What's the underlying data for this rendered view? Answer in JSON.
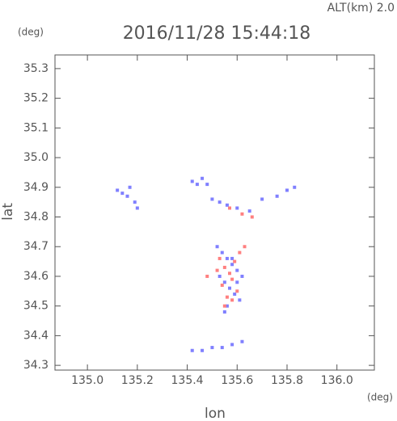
{
  "chart_data": {
    "type": "scatter",
    "altitude_label": "ALT(km) 2.0",
    "title": "2016/11/28 15:44:18",
    "ylabel_unit": "(deg)",
    "xlabel_unit": "(deg)",
    "ylabel": "lat",
    "xlabel": "lon",
    "xlim": [
      134.87,
      136.15
    ],
    "ylim": [
      34.284,
      35.346
    ],
    "xticks": [
      {
        "value": 135,
        "label": "135.0"
      },
      135.2,
      135.4,
      135.6,
      135.8,
      {
        "value": 136,
        "label": "136.0"
      }
    ],
    "yticks": [
      35.3,
      35.2,
      35.1,
      {
        "value": 35,
        "label": "35.0"
      },
      34.9,
      34.8,
      34.7,
      34.6,
      34.5,
      34.4,
      34.3
    ],
    "series": [
      {
        "color": "#8080ff",
        "x": [
          135.12,
          135.14,
          135.16,
          135.17,
          135.19,
          135.2,
          135.42,
          135.44,
          135.46,
          135.48,
          135.5,
          135.53,
          135.56,
          135.6,
          135.65,
          135.7,
          135.76,
          135.8,
          135.83,
          135.52,
          135.54,
          135.56,
          135.58,
          135.6,
          135.62,
          135.55,
          135.57,
          135.59,
          135.61,
          135.53,
          135.56,
          135.6,
          135.55,
          135.58,
          135.42,
          135.46,
          135.5,
          135.54,
          135.58,
          135.62
        ],
        "values": [
          34.89,
          34.88,
          34.87,
          34.9,
          34.85,
          34.83,
          34.92,
          34.91,
          34.93,
          34.91,
          34.86,
          34.85,
          34.84,
          34.83,
          34.82,
          34.86,
          34.87,
          34.89,
          34.9,
          34.7,
          34.68,
          34.66,
          34.64,
          34.62,
          34.6,
          34.58,
          34.56,
          34.54,
          34.52,
          34.6,
          34.5,
          34.58,
          34.48,
          34.66,
          34.35,
          34.35,
          34.36,
          34.36,
          34.37,
          34.38
        ]
      },
      {
        "color": "#ff8080",
        "x": [
          135.53,
          135.55,
          135.57,
          135.59,
          135.61,
          135.54,
          135.56,
          135.58,
          135.6,
          135.52,
          135.55,
          135.58,
          135.63,
          135.62,
          135.66,
          135.48,
          135.57
        ],
        "values": [
          34.66,
          34.63,
          34.61,
          34.65,
          34.68,
          34.57,
          34.53,
          34.59,
          34.55,
          34.62,
          34.5,
          34.52,
          34.7,
          34.81,
          34.8,
          34.6,
          34.83
        ]
      }
    ]
  }
}
